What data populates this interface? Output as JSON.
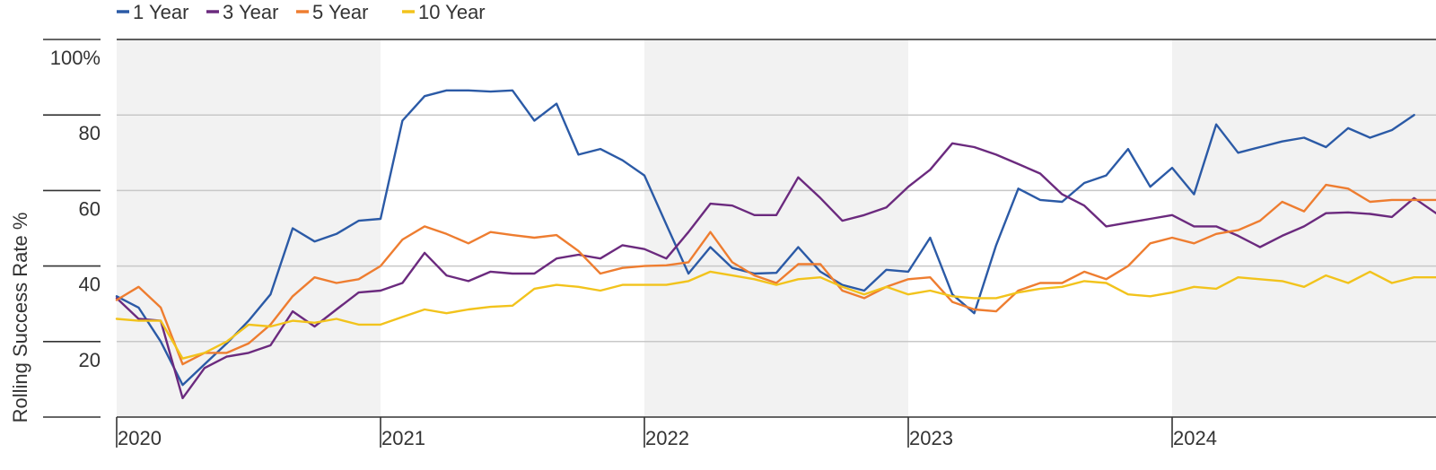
{
  "chart_data": {
    "type": "line",
    "title": "",
    "xlabel": "",
    "ylabel": "Rolling Success Rate %",
    "ylim": [
      0,
      100
    ],
    "yticks": [
      20,
      40,
      60,
      80,
      100
    ],
    "ytick_labels": [
      "20",
      "40",
      "60",
      "80",
      "100%"
    ],
    "xlim": [
      2020.0,
      2025.0
    ],
    "xticks": [
      2020,
      2021,
      2022,
      2023,
      2024
    ],
    "xtick_labels": [
      "2020",
      "2021",
      "2022",
      "2023",
      "2024"
    ],
    "shaded_years": [
      2020,
      2022,
      2024
    ],
    "shade_color": "#f2f2f2",
    "grid_color": "#c8c8c8",
    "legend_position": "top-left",
    "series": [
      {
        "name": "1 Year",
        "color": "#2b5aa6",
        "points": [
          [
            2020.0,
            32
          ],
          [
            2020.083,
            29
          ],
          [
            2020.167,
            20
          ],
          [
            2020.25,
            8.5
          ],
          [
            2020.333,
            14
          ],
          [
            2020.417,
            19.5
          ],
          [
            2020.5,
            25.5
          ],
          [
            2020.583,
            32.5
          ],
          [
            2020.667,
            50
          ],
          [
            2020.75,
            46.5
          ],
          [
            2020.833,
            48.5
          ],
          [
            2020.917,
            52
          ],
          [
            2021.0,
            52.5
          ],
          [
            2021.083,
            78.5
          ],
          [
            2021.167,
            85
          ],
          [
            2021.25,
            86.5
          ],
          [
            2021.333,
            86.5
          ],
          [
            2021.417,
            86.2
          ],
          [
            2021.5,
            86.5
          ],
          [
            2021.583,
            78.5
          ],
          [
            2021.667,
            83
          ],
          [
            2021.75,
            69.5
          ],
          [
            2021.833,
            71
          ],
          [
            2021.917,
            68
          ],
          [
            2022.0,
            64
          ],
          [
            2022.083,
            51
          ],
          [
            2022.167,
            38
          ],
          [
            2022.25,
            45
          ],
          [
            2022.333,
            39.5
          ],
          [
            2022.417,
            38
          ],
          [
            2022.5,
            38.2
          ],
          [
            2022.583,
            45
          ],
          [
            2022.667,
            38.5
          ],
          [
            2022.75,
            35
          ],
          [
            2022.833,
            33.5
          ],
          [
            2022.917,
            39
          ],
          [
            2023.0,
            38.5
          ],
          [
            2023.083,
            47.5
          ],
          [
            2023.167,
            32.5
          ],
          [
            2023.25,
            27.5
          ],
          [
            2023.333,
            45.5
          ],
          [
            2023.417,
            60.5
          ],
          [
            2023.5,
            57.5
          ],
          [
            2023.583,
            57
          ],
          [
            2023.667,
            62
          ],
          [
            2023.75,
            64
          ],
          [
            2023.833,
            71
          ],
          [
            2023.917,
            61
          ],
          [
            2024.0,
            66
          ],
          [
            2024.083,
            59
          ],
          [
            2024.167,
            77.5
          ],
          [
            2024.25,
            70
          ],
          [
            2024.333,
            71.5
          ],
          [
            2024.417,
            73
          ],
          [
            2024.5,
            74
          ],
          [
            2024.583,
            71.5
          ],
          [
            2024.667,
            76.5
          ],
          [
            2024.75,
            74
          ],
          [
            2024.833,
            76
          ],
          [
            2024.917,
            80
          ]
        ]
      },
      {
        "name": "3 Year",
        "color": "#6b2a7e",
        "points": [
          [
            2020.0,
            31.5
          ],
          [
            2020.083,
            26
          ],
          [
            2020.167,
            25.5
          ],
          [
            2020.25,
            5
          ],
          [
            2020.333,
            13
          ],
          [
            2020.417,
            16
          ],
          [
            2020.5,
            17
          ],
          [
            2020.583,
            19
          ],
          [
            2020.667,
            28
          ],
          [
            2020.75,
            24
          ],
          [
            2020.833,
            28.5
          ],
          [
            2020.917,
            33
          ],
          [
            2021.0,
            33.5
          ],
          [
            2021.083,
            35.5
          ],
          [
            2021.167,
            43.5
          ],
          [
            2021.25,
            37.5
          ],
          [
            2021.333,
            36
          ],
          [
            2021.417,
            38.5
          ],
          [
            2021.5,
            38
          ],
          [
            2021.583,
            38
          ],
          [
            2021.667,
            42
          ],
          [
            2021.75,
            43
          ],
          [
            2021.833,
            42
          ],
          [
            2021.917,
            45.5
          ],
          [
            2022.0,
            44.5
          ],
          [
            2022.083,
            42
          ],
          [
            2022.167,
            49
          ],
          [
            2022.25,
            56.5
          ],
          [
            2022.333,
            56
          ],
          [
            2022.417,
            53.5
          ],
          [
            2022.5,
            53.5
          ],
          [
            2022.583,
            63.5
          ],
          [
            2022.667,
            58
          ],
          [
            2022.75,
            52
          ],
          [
            2022.833,
            53.5
          ],
          [
            2022.917,
            55.5
          ],
          [
            2023.0,
            61
          ],
          [
            2023.083,
            65.5
          ],
          [
            2023.167,
            72.5
          ],
          [
            2023.25,
            71.5
          ],
          [
            2023.333,
            69.5
          ],
          [
            2023.417,
            67
          ],
          [
            2023.5,
            64.5
          ],
          [
            2023.583,
            59
          ],
          [
            2023.667,
            56
          ],
          [
            2023.75,
            50.5
          ],
          [
            2023.833,
            51.5
          ],
          [
            2023.917,
            52.5
          ],
          [
            2024.0,
            53.5
          ],
          [
            2024.083,
            50.5
          ],
          [
            2024.167,
            50.5
          ],
          [
            2024.25,
            48
          ],
          [
            2024.333,
            45
          ],
          [
            2024.417,
            48
          ],
          [
            2024.5,
            50.5
          ],
          [
            2024.583,
            54
          ],
          [
            2024.667,
            54.2
          ],
          [
            2024.75,
            53.8
          ],
          [
            2024.833,
            53
          ],
          [
            2024.917,
            58
          ],
          [
            2025.0,
            54
          ]
        ]
      },
      {
        "name": "5 Year",
        "color": "#ee7d30",
        "points": [
          [
            2020.0,
            31
          ],
          [
            2020.083,
            34.5
          ],
          [
            2020.167,
            29
          ],
          [
            2020.25,
            14
          ],
          [
            2020.333,
            17
          ],
          [
            2020.417,
            17
          ],
          [
            2020.5,
            19.5
          ],
          [
            2020.583,
            24.5
          ],
          [
            2020.667,
            32
          ],
          [
            2020.75,
            37
          ],
          [
            2020.833,
            35.5
          ],
          [
            2020.917,
            36.5
          ],
          [
            2021.0,
            40
          ],
          [
            2021.083,
            47
          ],
          [
            2021.167,
            50.5
          ],
          [
            2021.25,
            48.5
          ],
          [
            2021.333,
            46
          ],
          [
            2021.417,
            49
          ],
          [
            2021.5,
            48.2
          ],
          [
            2021.583,
            47.5
          ],
          [
            2021.667,
            48.2
          ],
          [
            2021.75,
            44
          ],
          [
            2021.833,
            38
          ],
          [
            2021.917,
            39.5
          ],
          [
            2022.0,
            40
          ],
          [
            2022.083,
            40.2
          ],
          [
            2022.167,
            41
          ],
          [
            2022.25,
            49
          ],
          [
            2022.333,
            41
          ],
          [
            2022.417,
            37.5
          ],
          [
            2022.5,
            35.5
          ],
          [
            2022.583,
            40.5
          ],
          [
            2022.667,
            40.5
          ],
          [
            2022.75,
            33.5
          ],
          [
            2022.833,
            31.5
          ],
          [
            2022.917,
            34.5
          ],
          [
            2023.0,
            36.5
          ],
          [
            2023.083,
            37
          ],
          [
            2023.167,
            30.5
          ],
          [
            2023.25,
            28.5
          ],
          [
            2023.333,
            28
          ],
          [
            2023.417,
            33.5
          ],
          [
            2023.5,
            35.5
          ],
          [
            2023.583,
            35.5
          ],
          [
            2023.667,
            38.5
          ],
          [
            2023.75,
            36.5
          ],
          [
            2023.833,
            40
          ],
          [
            2023.917,
            46
          ],
          [
            2024.0,
            47.5
          ],
          [
            2024.083,
            46
          ],
          [
            2024.167,
            48.5
          ],
          [
            2024.25,
            49.5
          ],
          [
            2024.333,
            52
          ],
          [
            2024.417,
            57
          ],
          [
            2024.5,
            54.5
          ],
          [
            2024.583,
            61.5
          ],
          [
            2024.667,
            60.5
          ],
          [
            2024.75,
            57
          ],
          [
            2024.833,
            57.5
          ],
          [
            2024.917,
            57.5
          ],
          [
            2025.0,
            57.5
          ]
        ]
      },
      {
        "name": "10 Year",
        "color": "#f2c31c",
        "points": [
          [
            2020.0,
            26
          ],
          [
            2020.083,
            25.5
          ],
          [
            2020.167,
            25.5
          ],
          [
            2020.25,
            15.5
          ],
          [
            2020.333,
            17
          ],
          [
            2020.417,
            20
          ],
          [
            2020.5,
            24.5
          ],
          [
            2020.583,
            24
          ],
          [
            2020.667,
            25.5
          ],
          [
            2020.75,
            25
          ],
          [
            2020.833,
            26
          ],
          [
            2020.917,
            24.5
          ],
          [
            2021.0,
            24.5
          ],
          [
            2021.083,
            26.5
          ],
          [
            2021.167,
            28.5
          ],
          [
            2021.25,
            27.5
          ],
          [
            2021.333,
            28.5
          ],
          [
            2021.417,
            29.2
          ],
          [
            2021.5,
            29.5
          ],
          [
            2021.583,
            34
          ],
          [
            2021.667,
            35
          ],
          [
            2021.75,
            34.5
          ],
          [
            2021.833,
            33.5
          ],
          [
            2021.917,
            35
          ],
          [
            2022.0,
            35
          ],
          [
            2022.083,
            35
          ],
          [
            2022.167,
            36
          ],
          [
            2022.25,
            38.5
          ],
          [
            2022.333,
            37.5
          ],
          [
            2022.417,
            36.5
          ],
          [
            2022.5,
            35
          ],
          [
            2022.583,
            36.5
          ],
          [
            2022.667,
            37
          ],
          [
            2022.75,
            34.5
          ],
          [
            2022.833,
            32.5
          ],
          [
            2022.917,
            34.5
          ],
          [
            2023.0,
            32.5
          ],
          [
            2023.083,
            33.5
          ],
          [
            2023.167,
            32
          ],
          [
            2023.25,
            31.5
          ],
          [
            2023.333,
            31.5
          ],
          [
            2023.417,
            33
          ],
          [
            2023.5,
            34
          ],
          [
            2023.583,
            34.5
          ],
          [
            2023.667,
            36
          ],
          [
            2023.75,
            35.5
          ],
          [
            2023.833,
            32.5
          ],
          [
            2023.917,
            32
          ],
          [
            2024.0,
            33
          ],
          [
            2024.083,
            34.5
          ],
          [
            2024.167,
            34
          ],
          [
            2024.25,
            37
          ],
          [
            2024.333,
            36.5
          ],
          [
            2024.417,
            36
          ],
          [
            2024.5,
            34.5
          ],
          [
            2024.583,
            37.5
          ],
          [
            2024.667,
            35.5
          ],
          [
            2024.75,
            38.5
          ],
          [
            2024.833,
            35.5
          ],
          [
            2024.917,
            37
          ],
          [
            2025.0,
            37
          ]
        ]
      }
    ]
  }
}
